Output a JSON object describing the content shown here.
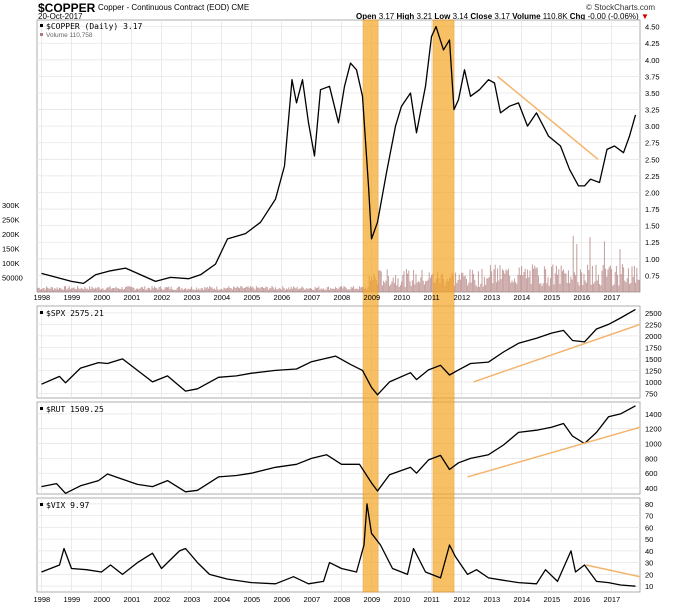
{
  "header": {
    "symbol": "$COPPER",
    "description": "Copper - Continuous Contract (EOD) CME",
    "date": "20-Oct-2017",
    "credit": "© StockCharts.com",
    "quote": {
      "open_label": "Open",
      "open": "3.17",
      "high_label": "High",
      "high": "3.21",
      "low_label": "Low",
      "low": "3.14",
      "close_label": "Close",
      "close": "3.17",
      "volume_label": "Volume",
      "volume": "110.8K",
      "chg_label": "Chg",
      "chg": "-0.00 (-0.06%)"
    }
  },
  "colors": {
    "price_line": "#000000",
    "highlight": "#f5a623",
    "trendline": "#f4b36b",
    "volume": "#b07a7a",
    "grid": "#e6e6e6"
  },
  "chart_data": [
    {
      "type": "line",
      "label": "$COPPER (Daily) 3.17",
      "volume_label": "Volume 110,758",
      "x_tick_labels": [
        "1998",
        "1999",
        "2000",
        "2001",
        "2002",
        "2003",
        "2004",
        "2005",
        "2006",
        "2007",
        "2008",
        "2009",
        "2010",
        "2011",
        "2012",
        "2013",
        "2014",
        "2015",
        "2016",
        "2017"
      ],
      "y_ticks": [
        "4.50",
        "4.25",
        "4.00",
        "3.75",
        "3.50",
        "3.25",
        "3.00",
        "2.75",
        "2.50",
        "2.25",
        "2.00",
        "1.75",
        "1.50",
        "1.25",
        "1.00",
        "0.75"
      ],
      "ylim": [
        0.5,
        4.6
      ],
      "volume_ticks": [
        "300K",
        "250K",
        "200K",
        "150K",
        "100K",
        "50000"
      ],
      "points": [
        [
          1998.0,
          0.78
        ],
        [
          1998.5,
          0.72
        ],
        [
          1999.0,
          0.66
        ],
        [
          1999.4,
          0.63
        ],
        [
          1999.8,
          0.76
        ],
        [
          2000.3,
          0.82
        ],
        [
          2000.8,
          0.86
        ],
        [
          2001.2,
          0.78
        ],
        [
          2001.8,
          0.66
        ],
        [
          2002.3,
          0.72
        ],
        [
          2002.9,
          0.7
        ],
        [
          2003.3,
          0.76
        ],
        [
          2003.8,
          0.92
        ],
        [
          2004.2,
          1.3
        ],
        [
          2004.8,
          1.38
        ],
        [
          2005.3,
          1.55
        ],
        [
          2005.8,
          1.9
        ],
        [
          2006.1,
          2.4
        ],
        [
          2006.35,
          3.7
        ],
        [
          2006.5,
          3.35
        ],
        [
          2006.7,
          3.7
        ],
        [
          2006.9,
          3.05
        ],
        [
          2007.1,
          2.55
        ],
        [
          2007.3,
          3.55
        ],
        [
          2007.6,
          3.6
        ],
        [
          2007.9,
          3.05
        ],
        [
          2008.1,
          3.6
        ],
        [
          2008.3,
          3.95
        ],
        [
          2008.5,
          3.85
        ],
        [
          2008.7,
          3.45
        ],
        [
          2008.9,
          2.1
        ],
        [
          2009.0,
          1.3
        ],
        [
          2009.2,
          1.55
        ],
        [
          2009.5,
          2.3
        ],
        [
          2009.8,
          3.0
        ],
        [
          2010.0,
          3.3
        ],
        [
          2010.3,
          3.5
        ],
        [
          2010.5,
          2.9
        ],
        [
          2010.8,
          3.6
        ],
        [
          2011.0,
          4.35
        ],
        [
          2011.15,
          4.5
        ],
        [
          2011.4,
          4.15
        ],
        [
          2011.6,
          4.3
        ],
        [
          2011.75,
          3.25
        ],
        [
          2011.9,
          3.4
        ],
        [
          2012.1,
          3.85
        ],
        [
          2012.3,
          3.45
        ],
        [
          2012.6,
          3.55
        ],
        [
          2012.9,
          3.7
        ],
        [
          2013.1,
          3.65
        ],
        [
          2013.3,
          3.2
        ],
        [
          2013.6,
          3.3
        ],
        [
          2013.9,
          3.35
        ],
        [
          2014.2,
          3.0
        ],
        [
          2014.5,
          3.2
        ],
        [
          2014.9,
          2.85
        ],
        [
          2015.3,
          2.7
        ],
        [
          2015.6,
          2.35
        ],
        [
          2015.9,
          2.1
        ],
        [
          2016.1,
          2.1
        ],
        [
          2016.3,
          2.2
        ],
        [
          2016.6,
          2.15
        ],
        [
          2016.85,
          2.65
        ],
        [
          2017.1,
          2.7
        ],
        [
          2017.4,
          2.6
        ],
        [
          2017.6,
          2.85
        ],
        [
          2017.8,
          3.17
        ]
      ]
    },
    {
      "type": "line",
      "label": "$SPX 2575.21",
      "y_ticks": [
        "2500",
        "2250",
        "2000",
        "1750",
        "1500",
        "1250",
        "1000",
        "750"
      ],
      "ylim": [
        650,
        2650
      ],
      "points": [
        [
          1998.0,
          950
        ],
        [
          1998.6,
          1120
        ],
        [
          1998.8,
          980
        ],
        [
          1999.3,
          1300
        ],
        [
          1999.9,
          1420
        ],
        [
          2000.2,
          1400
        ],
        [
          2000.7,
          1500
        ],
        [
          2001.2,
          1250
        ],
        [
          2001.7,
          1000
        ],
        [
          2002.2,
          1130
        ],
        [
          2002.8,
          800
        ],
        [
          2003.2,
          850
        ],
        [
          2003.9,
          1100
        ],
        [
          2004.5,
          1130
        ],
        [
          2005.0,
          1190
        ],
        [
          2005.8,
          1250
        ],
        [
          2006.5,
          1280
        ],
        [
          2007.0,
          1440
        ],
        [
          2007.8,
          1560
        ],
        [
          2008.3,
          1380
        ],
        [
          2008.7,
          1250
        ],
        [
          2009.0,
          880
        ],
        [
          2009.2,
          720
        ],
        [
          2009.6,
          1000
        ],
        [
          2010.3,
          1200
        ],
        [
          2010.5,
          1050
        ],
        [
          2010.9,
          1260
        ],
        [
          2011.3,
          1360
        ],
        [
          2011.6,
          1150
        ],
        [
          2011.9,
          1260
        ],
        [
          2012.3,
          1400
        ],
        [
          2012.9,
          1430
        ],
        [
          2013.4,
          1650
        ],
        [
          2013.9,
          1840
        ],
        [
          2014.5,
          1950
        ],
        [
          2015.0,
          2060
        ],
        [
          2015.4,
          2120
        ],
        [
          2015.7,
          1900
        ],
        [
          2016.1,
          1870
        ],
        [
          2016.5,
          2150
        ],
        [
          2016.9,
          2250
        ],
        [
          2017.3,
          2390
        ],
        [
          2017.8,
          2575
        ]
      ]
    },
    {
      "type": "line",
      "label": "$RUT 1509.25",
      "y_ticks": [
        "1400",
        "1200",
        "1000",
        "800",
        "600",
        "400"
      ],
      "ylim": [
        320,
        1560
      ],
      "points": [
        [
          1998.0,
          420
        ],
        [
          1998.5,
          460
        ],
        [
          1998.8,
          330
        ],
        [
          1999.3,
          430
        ],
        [
          1999.9,
          500
        ],
        [
          2000.2,
          590
        ],
        [
          2000.7,
          520
        ],
        [
          2001.2,
          450
        ],
        [
          2001.7,
          420
        ],
        [
          2002.2,
          500
        ],
        [
          2002.8,
          350
        ],
        [
          2003.2,
          370
        ],
        [
          2003.9,
          550
        ],
        [
          2004.5,
          570
        ],
        [
          2005.0,
          600
        ],
        [
          2005.8,
          680
        ],
        [
          2006.5,
          720
        ],
        [
          2007.0,
          800
        ],
        [
          2007.5,
          850
        ],
        [
          2008.0,
          720
        ],
        [
          2008.6,
          720
        ],
        [
          2009.0,
          470
        ],
        [
          2009.2,
          360
        ],
        [
          2009.6,
          580
        ],
        [
          2010.3,
          680
        ],
        [
          2010.5,
          600
        ],
        [
          2010.9,
          780
        ],
        [
          2011.3,
          840
        ],
        [
          2011.6,
          650
        ],
        [
          2011.9,
          740
        ],
        [
          2012.3,
          800
        ],
        [
          2012.9,
          850
        ],
        [
          2013.4,
          980
        ],
        [
          2013.9,
          1150
        ],
        [
          2014.5,
          1180
        ],
        [
          2015.0,
          1220
        ],
        [
          2015.4,
          1270
        ],
        [
          2015.7,
          1100
        ],
        [
          2016.1,
          1000
        ],
        [
          2016.5,
          1150
        ],
        [
          2016.9,
          1360
        ],
        [
          2017.3,
          1400
        ],
        [
          2017.8,
          1509
        ]
      ]
    },
    {
      "type": "line",
      "label": "$VIX 9.97",
      "y_ticks": [
        "80",
        "70",
        "60",
        "50",
        "40",
        "30",
        "20",
        "10"
      ],
      "ylim": [
        5,
        85
      ],
      "points": [
        [
          1998.0,
          22
        ],
        [
          1998.6,
          28
        ],
        [
          1998.75,
          42
        ],
        [
          1999.0,
          25
        ],
        [
          1999.5,
          24
        ],
        [
          2000.0,
          22
        ],
        [
          2000.3,
          28
        ],
        [
          2000.7,
          20
        ],
        [
          2001.2,
          30
        ],
        [
          2001.7,
          38
        ],
        [
          2002.0,
          25
        ],
        [
          2002.6,
          40
        ],
        [
          2002.8,
          42
        ],
        [
          2003.2,
          30
        ],
        [
          2003.6,
          20
        ],
        [
          2004.2,
          16
        ],
        [
          2005.0,
          13
        ],
        [
          2005.8,
          12
        ],
        [
          2006.4,
          18
        ],
        [
          2006.9,
          12
        ],
        [
          2007.4,
          14
        ],
        [
          2007.6,
          30
        ],
        [
          2008.0,
          25
        ],
        [
          2008.5,
          22
        ],
        [
          2008.75,
          45
        ],
        [
          2008.85,
          80
        ],
        [
          2009.0,
          55
        ],
        [
          2009.3,
          45
        ],
        [
          2009.7,
          25
        ],
        [
          2010.2,
          20
        ],
        [
          2010.4,
          42
        ],
        [
          2010.8,
          22
        ],
        [
          2011.3,
          17
        ],
        [
          2011.6,
          45
        ],
        [
          2011.8,
          35
        ],
        [
          2012.2,
          20
        ],
        [
          2012.5,
          24
        ],
        [
          2012.9,
          17
        ],
        [
          2013.4,
          15
        ],
        [
          2013.9,
          13
        ],
        [
          2014.5,
          12
        ],
        [
          2014.8,
          24
        ],
        [
          2015.2,
          14
        ],
        [
          2015.65,
          40
        ],
        [
          2015.8,
          22
        ],
        [
          2016.1,
          28
        ],
        [
          2016.5,
          14
        ],
        [
          2016.9,
          13
        ],
        [
          2017.3,
          11
        ],
        [
          2017.8,
          9.97
        ]
      ]
    }
  ]
}
